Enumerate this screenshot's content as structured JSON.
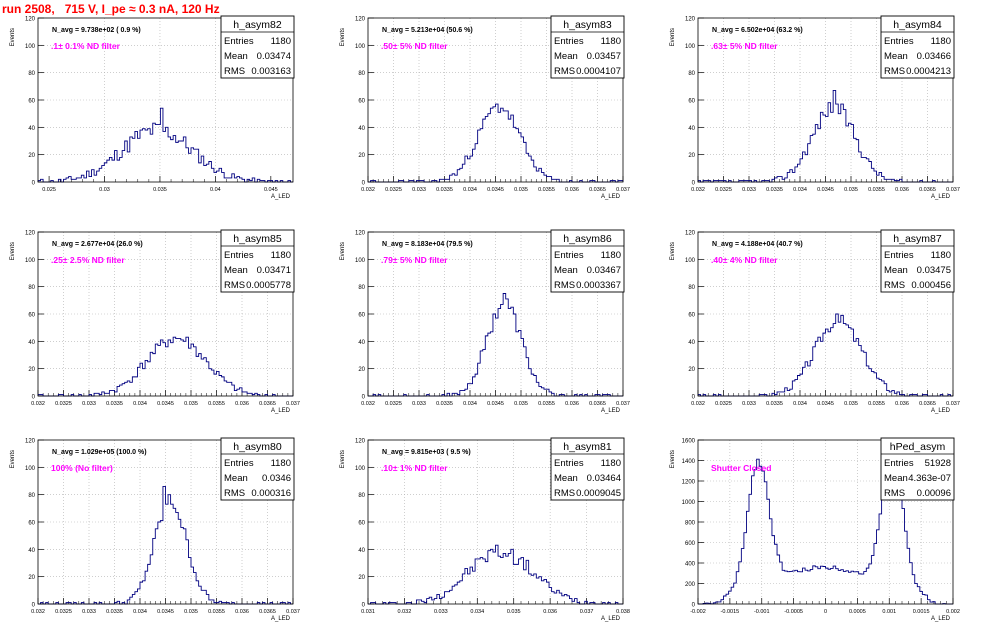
{
  "page_title": "run 2508,   715 V, I_pe ≈ 0.3 nA, 120 Hz",
  "colors": {
    "title": "#ff0000",
    "annotation": "#ff00ff",
    "hist": "#000080",
    "frame": "#000000",
    "grid": "#b0b0b0"
  },
  "chart_data": [
    {
      "type": "histogram",
      "name": "h_asym82",
      "xlabel": "A_LED",
      "ylabel": "Events",
      "navg": "N_avg = 9.738e+02 ( 0.9 %)",
      "filter": ".1± 0.1% ND filter",
      "stats": {
        "entries": "1180",
        "mean": "0.03474",
        "rms": "0.003163"
      },
      "xlim": [
        0.024,
        0.047
      ],
      "ylim": [
        0,
        120
      ],
      "xticks": [
        0.025,
        0.03,
        0.035,
        0.04,
        0.045
      ],
      "xticklabels": [
        "0.025",
        "0.03",
        "0.035",
        "0.04",
        "0.045"
      ],
      "yticks": [
        0,
        20,
        40,
        60,
        80,
        100,
        120
      ],
      "mean": 0.03474,
      "sigma": 0.0032,
      "peak": 38,
      "noise": 7,
      "seed": 11,
      "peakbin": 0.0352,
      "peakval": 54
    },
    {
      "type": "histogram",
      "name": "h_asym83",
      "xlabel": "A_LED",
      "ylabel": "Events",
      "navg": "N_avg = 5.213e+04 (50.6 %)",
      "filter": ".50± 5% ND filter",
      "stats": {
        "entries": "1180",
        "mean": "0.03457",
        "rms": "0.0004107"
      },
      "xlim": [
        0.032,
        0.037
      ],
      "ylim": [
        0,
        120
      ],
      "xticks": [
        0.032,
        0.0325,
        0.033,
        0.0335,
        0.034,
        0.0345,
        0.035,
        0.0355,
        0.036,
        0.0365,
        0.037
      ],
      "xticklabels": [
        "0.032",
        "0.0325",
        "0.033",
        "0.0335",
        "0.034",
        "0.0345",
        "0.035",
        "0.0355",
        "0.036",
        "0.0365",
        "0.037"
      ],
      "yticks": [
        0,
        20,
        40,
        60,
        80,
        100,
        120
      ],
      "mean": 0.03457,
      "sigma": 0.00041,
      "peak": 55,
      "noise": 5,
      "seed": 23
    },
    {
      "type": "histogram",
      "name": "h_asym84",
      "xlabel": "A_LED",
      "ylabel": "Events",
      "navg": "N_avg = 6.502e+04 (63.2 %)",
      "filter": ".63± 5% ND filter",
      "stats": {
        "entries": "1180",
        "mean": "0.03466",
        "rms": "0.0004213"
      },
      "xlim": [
        0.032,
        0.037
      ],
      "ylim": [
        0,
        120
      ],
      "xticks": [
        0.032,
        0.0325,
        0.033,
        0.0335,
        0.034,
        0.0345,
        0.035,
        0.0355,
        0.036,
        0.0365,
        0.037
      ],
      "xticklabels": [
        "0.032",
        "0.0325",
        "0.033",
        "0.0335",
        "0.034",
        "0.0345",
        "0.035",
        "0.0355",
        "0.036",
        "0.0365",
        "0.037"
      ],
      "yticks": [
        0,
        20,
        40,
        60,
        80,
        100,
        120
      ],
      "mean": 0.03466,
      "sigma": 0.00042,
      "peak": 55,
      "noise": 6,
      "seed": 37,
      "peakbin": 0.03469,
      "peakval": 67
    },
    {
      "type": "histogram",
      "name": "h_asym85",
      "xlabel": "A_LED",
      "ylabel": "Events",
      "navg": "N_avg = 2.677e+04 (26.0 %)",
      "filter": ".25± 2.5% ND filter",
      "stats": {
        "entries": "1180",
        "mean": "0.03471",
        "rms": "0.0005778"
      },
      "xlim": [
        0.032,
        0.037
      ],
      "ylim": [
        0,
        120
      ],
      "xticks": [
        0.032,
        0.0325,
        0.033,
        0.0335,
        0.034,
        0.0345,
        0.035,
        0.0355,
        0.036,
        0.0365,
        0.037
      ],
      "xticklabels": [
        "0.032",
        "0.0325",
        "0.033",
        "0.0335",
        "0.034",
        "0.0345",
        "0.035",
        "0.0355",
        "0.036",
        "0.0365",
        "0.037"
      ],
      "yticks": [
        0,
        20,
        40,
        60,
        80,
        100,
        120
      ],
      "mean": 0.03471,
      "sigma": 0.00058,
      "peak": 42,
      "noise": 5,
      "seed": 41
    },
    {
      "type": "histogram",
      "name": "h_asym86",
      "xlabel": "A_LED",
      "ylabel": "Events",
      "navg": "N_avg = 8.183e+04 (79.5 %)",
      "filter": ".79± 5% ND filter",
      "stats": {
        "entries": "1180",
        "mean": "0.03467",
        "rms": "0.0003367"
      },
      "xlim": [
        0.032,
        0.037
      ],
      "ylim": [
        0,
        120
      ],
      "xticks": [
        0.032,
        0.0325,
        0.033,
        0.0335,
        0.034,
        0.0345,
        0.035,
        0.0355,
        0.036,
        0.0365,
        0.037
      ],
      "xticklabels": [
        "0.032",
        "0.0325",
        "0.033",
        "0.0335",
        "0.034",
        "0.0345",
        "0.035",
        "0.0355",
        "0.036",
        "0.0365",
        "0.037"
      ],
      "yticks": [
        0,
        20,
        40,
        60,
        80,
        100,
        120
      ],
      "mean": 0.03467,
      "sigma": 0.00034,
      "peak": 68,
      "noise": 6,
      "seed": 53,
      "peakbin": 0.03469,
      "peakval": 75
    },
    {
      "type": "histogram",
      "name": "h_asym87",
      "xlabel": "A_LED",
      "ylabel": "Events",
      "navg": "N_avg = 4.188e+04 (40.7 %)",
      "filter": ".40± 4% ND filter",
      "stats": {
        "entries": "1180",
        "mean": "0.03475",
        "rms": "0.000456"
      },
      "xlim": [
        0.032,
        0.037
      ],
      "ylim": [
        0,
        120
      ],
      "xticks": [
        0.032,
        0.0325,
        0.033,
        0.0335,
        0.034,
        0.0345,
        0.035,
        0.0355,
        0.036,
        0.0365,
        0.037
      ],
      "xticklabels": [
        "0.032",
        "0.0325",
        "0.033",
        "0.0335",
        "0.034",
        "0.0345",
        "0.035",
        "0.0355",
        "0.036",
        "0.0365",
        "0.037"
      ],
      "yticks": [
        0,
        20,
        40,
        60,
        80,
        100,
        120
      ],
      "mean": 0.03475,
      "sigma": 0.00046,
      "peak": 55,
      "noise": 5,
      "seed": 67,
      "peakbin": 0.03473,
      "peakval": 60
    },
    {
      "type": "histogram",
      "name": "h_asym80",
      "xlabel": "A_LED",
      "ylabel": "Events",
      "navg": "N_avg = 1.029e+05 (100.0 %)",
      "filter": "100% (No filter)",
      "stats": {
        "entries": "1180",
        "mean": "0.0346",
        "rms": "0.000316"
      },
      "xlim": [
        0.032,
        0.037
      ],
      "ylim": [
        0,
        120
      ],
      "xticks": [
        0.032,
        0.0325,
        0.033,
        0.0335,
        0.034,
        0.0345,
        0.035,
        0.0355,
        0.036,
        0.0365,
        0.037
      ],
      "xticklabels": [
        "0.032",
        "0.0325",
        "0.033",
        "0.0335",
        "0.034",
        "0.0345",
        "0.035",
        "0.0355",
        "0.036",
        "0.0365",
        "0.037"
      ],
      "yticks": [
        0,
        20,
        40,
        60,
        80,
        100,
        120
      ],
      "mean": 0.0346,
      "sigma": 0.000316,
      "peak": 75,
      "noise": 6,
      "seed": 79,
      "peakbin": 0.03449,
      "peakval": 86
    },
    {
      "type": "histogram",
      "name": "h_asym81",
      "xlabel": "A_LED",
      "ylabel": "Events",
      "navg": "N_avg = 9.815e+03 ( 9.5 %)",
      "filter": ".10± 1% ND filter",
      "stats": {
        "entries": "1180",
        "mean": "0.03464",
        "rms": "0.0009045"
      },
      "xlim": [
        0.031,
        0.038
      ],
      "ylim": [
        0,
        120
      ],
      "xticks": [
        0.031,
        0.032,
        0.033,
        0.034,
        0.035,
        0.036,
        0.037,
        0.038
      ],
      "xticklabels": [
        "0.031",
        "0.032",
        "0.033",
        "0.034",
        "0.035",
        "0.036",
        "0.037",
        "0.038"
      ],
      "yticks": [
        0,
        20,
        40,
        60,
        80,
        100,
        120
      ],
      "mean": 0.03464,
      "sigma": 0.0009,
      "peak": 38,
      "noise": 6,
      "seed": 97,
      "peakbin": 0.0344,
      "peakval": 40
    },
    {
      "type": "histogram",
      "name": "hPed_asym",
      "xlabel": "A_LED",
      "ylabel": "Events",
      "navg": "",
      "filter": "Shutter Closed",
      "stats": {
        "entries": "51928",
        "mean": "4.363e-07",
        "rms": "0.00096"
      },
      "xlim": [
        -0.002,
        0.002
      ],
      "ylim": [
        0,
        1600
      ],
      "xticks": [
        -0.002,
        -0.0015,
        -0.001,
        -0.0005,
        0,
        0.0005,
        0.001,
        0.0015,
        0.002
      ],
      "xticklabels": [
        "-0.002",
        "-0.0015",
        "-0.001",
        "-0.0005",
        "0",
        "0.0005",
        "0.001",
        "0.0015",
        "0.002"
      ],
      "yticks": [
        0,
        200,
        400,
        600,
        800,
        1000,
        1200,
        1400,
        1600
      ],
      "bimodal": true,
      "peak": 1400,
      "noise": 40,
      "seed": 131
    }
  ]
}
